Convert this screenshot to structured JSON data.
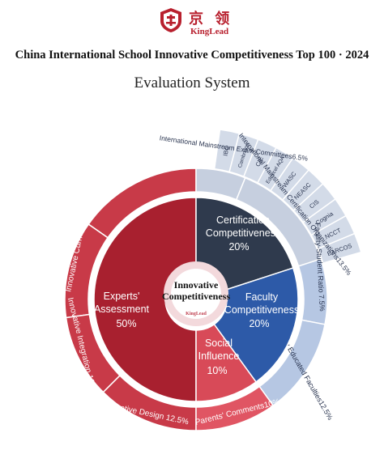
{
  "header": {
    "logo_cn": "京 领",
    "logo_en": "KingLead",
    "title": "China International School Innovative Competitiveness Top 100 · 2024",
    "subtitle": "Evaluation System"
  },
  "colors": {
    "experts": "#a8202f",
    "experts_outer": "#c83a48",
    "certification": "#2f3a4d",
    "cert_outer": "#c6cfdf",
    "faculty": "#2d5aa8",
    "faculty_outer": "#b6c7e3",
    "social": "#d84a58",
    "social_outer": "#e05563"
  },
  "chart_data": {
    "type": "sunburst",
    "title": "",
    "center": {
      "label": "Innovative Competitiveness",
      "logo": "KingLead"
    },
    "inner": [
      {
        "name": "Experts' Assessment",
        "value": 50,
        "label": "50%"
      },
      {
        "name": "Certification Competitiveness",
        "value": 20,
        "label": "20%"
      },
      {
        "name": "Faculty Competitiveness",
        "value": 20,
        "label": "20%"
      },
      {
        "name": "Social Influence",
        "value": 10,
        "label": "10%"
      }
    ],
    "outer": [
      {
        "parent": "Experts' Assessment",
        "name": "Innovative Ideology",
        "value": 12.5,
        "label": "Innovative Ideology 12.5%"
      },
      {
        "parent": "Experts' Assessment",
        "name": "Innovative Curriculum",
        "value": 12.5,
        "label": "Innovative Curriculum12.5%"
      },
      {
        "parent": "Experts' Assessment",
        "name": "Innovative Integration",
        "value": 12.5,
        "label": "Innovative Integration 12.5%"
      },
      {
        "parent": "Experts' Assessment",
        "name": "Innovative Design",
        "value": 12.5,
        "label": "Innovative Design 12.5%"
      },
      {
        "parent": "Certification Competitiveness",
        "name": "International Mainstream Exam Committees",
        "value": 6.5,
        "label": "International Mainstream Exam Committees6.5%"
      },
      {
        "parent": "Certification Competitiveness",
        "name": "International Mainstream Certification Organizations",
        "value": 13.5,
        "label": "International Mainstream Certification Organizations13.5%"
      },
      {
        "parent": "Faculty Competitiveness",
        "name": "Faculty-Student Ratio",
        "value": 7.5,
        "label": "Faculty-Student Ratio 7.5%"
      },
      {
        "parent": "Faculty Competitiveness",
        "name": "Proportion of Highly Educated Faculties",
        "value": 12.5,
        "label": "Proportion of Highly Educated Faculties12.5%"
      },
      {
        "parent": "Social Influence",
        "name": "Parents' Comments",
        "value": 10,
        "label": "Parents' Comments10%"
      }
    ],
    "exam_committees": [
      "IBO",
      "Cambridge",
      "CIE",
      "Edexcel AQA"
    ],
    "certification_orgs": [
      "WASC",
      "NEASC",
      "CIS",
      "Cognia",
      "NCCT",
      "EARCOS"
    ]
  }
}
